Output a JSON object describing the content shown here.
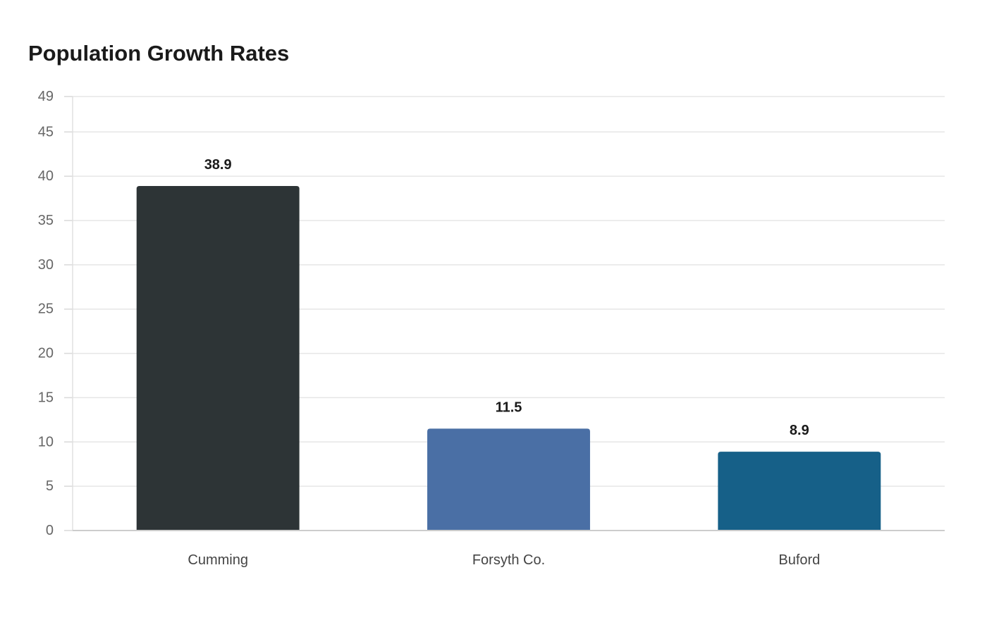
{
  "chart_data": {
    "type": "bar",
    "title": "Population Growth Rates",
    "xlabel": "",
    "ylabel": "",
    "categories": [
      "Cumming",
      "Forsyth Co.",
      "Buford"
    ],
    "values": [
      38.9,
      11.5,
      8.9
    ],
    "value_labels": [
      "38.9",
      "11.5",
      "8.9"
    ],
    "colors": [
      "#2d3436",
      "#4a6fa5",
      "#166088"
    ],
    "ylim": [
      0,
      49
    ],
    "yticks": [
      0,
      5,
      10,
      15,
      20,
      25,
      30,
      35,
      40,
      45,
      49
    ],
    "grid": true,
    "legend": "none"
  }
}
